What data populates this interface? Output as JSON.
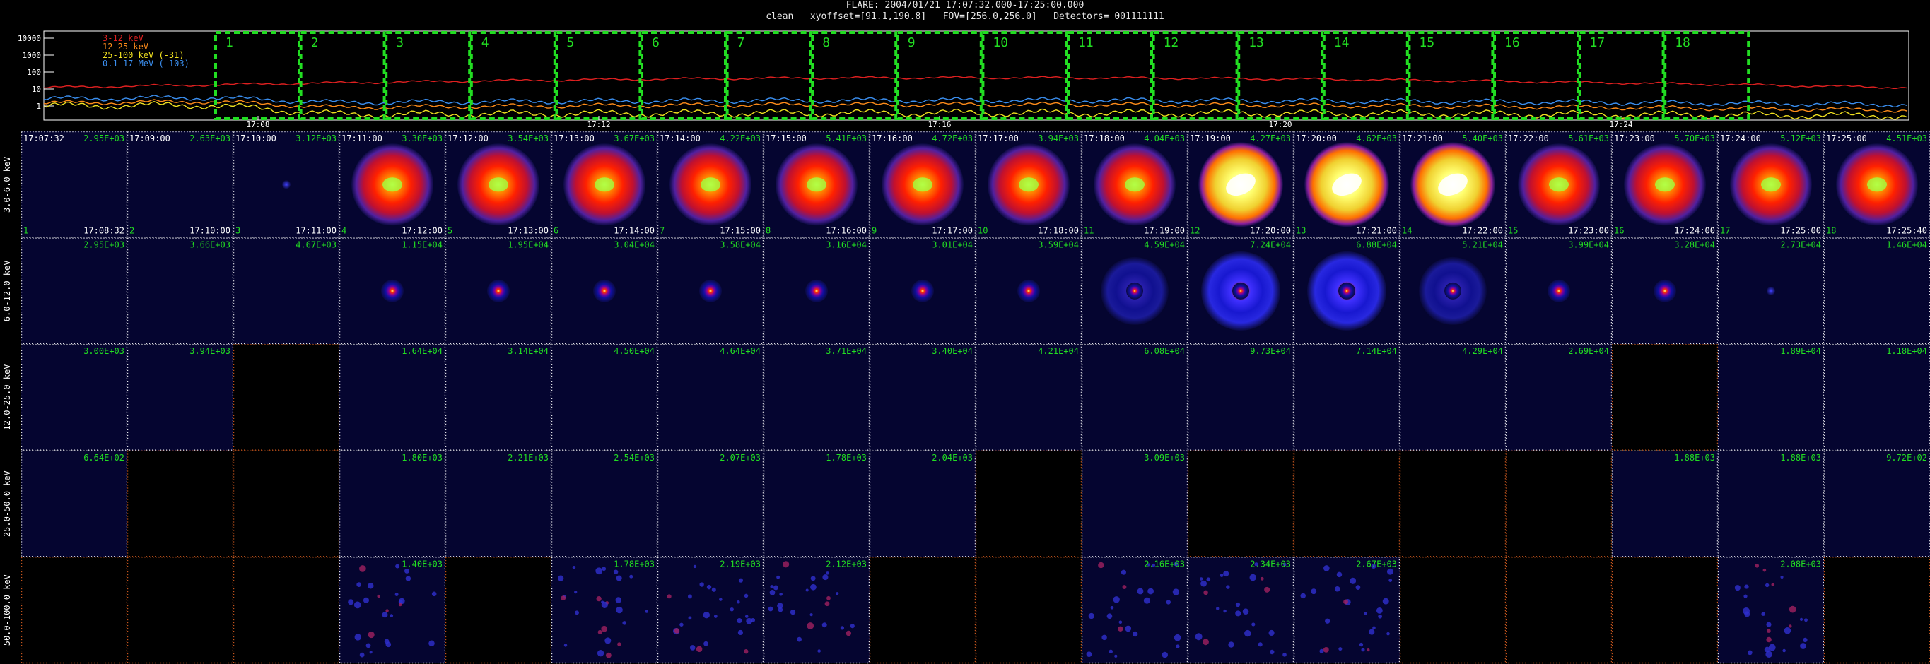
{
  "header": {
    "line1": "FLARE: 2004/01/21 17:07:32.000-17:25:00.000",
    "line2": "clean   xyoffset=[91.1,190.8]   FOV=[256.0,256.0]   Detectors= 001111111"
  },
  "lightcurve": {
    "yticks": [
      "10000",
      "1000",
      "100",
      "10",
      "1"
    ],
    "xticks": [
      "17:08",
      "17:12",
      "17:16",
      "17:20",
      "17:24"
    ],
    "legend": [
      {
        "label": "3-12 keV",
        "color": "#e02020"
      },
      {
        "label": "12-25 keV",
        "color": "#ff8c1a"
      },
      {
        "label": "25-100 keV (-31)",
        "color": "#f0e020"
      },
      {
        "label": "0.1-17 MeV (-103)",
        "color": "#3b8ff0"
      }
    ],
    "intervals": [
      "1",
      "2",
      "3",
      "4",
      "5",
      "6",
      "7",
      "8",
      "9",
      "10",
      "11",
      "12",
      "13",
      "14",
      "15",
      "16",
      "17",
      "18"
    ]
  },
  "grid": {
    "col_start_times": [
      "17:07:32",
      "17:09:00",
      "17:10:00",
      "17:11:00",
      "17:12:00",
      "17:13:00",
      "17:14:00",
      "17:15:00",
      "17:16:00",
      "17:17:00",
      "17:18:00",
      "17:19:00",
      "17:20:00",
      "17:21:00",
      "17:22:00",
      "17:23:00",
      "17:24:00",
      "17:25:00"
    ],
    "col_end_times": [
      "17:08:32",
      "17:10:00",
      "17:11:00",
      "17:12:00",
      "17:13:00",
      "17:14:00",
      "17:15:00",
      "17:16:00",
      "17:17:00",
      "17:18:00",
      "17:19:00",
      "17:20:00",
      "17:21:00",
      "17:22:00",
      "17:23:00",
      "17:24:00",
      "17:25:00",
      "17:25:40"
    ],
    "col_index": [
      "1",
      "2",
      "3",
      "4",
      "5",
      "6",
      "7",
      "8",
      "9",
      "10",
      "11",
      "12",
      "13",
      "14",
      "15",
      "16",
      "17",
      "18"
    ],
    "rows": [
      {
        "band": "3.0-6.0 keV",
        "max": [
          "2.95E+03",
          "2.63E+03",
          "3.12E+03",
          "3.30E+03",
          "3.54E+03",
          "3.67E+03",
          "4.22E+03",
          "5.41E+03",
          "4.72E+03",
          "3.94E+03",
          "4.04E+03",
          "4.27E+03",
          "4.62E+03",
          "5.40E+03",
          "5.61E+03",
          "5.70E+03",
          "5.12E+03",
          "4.51E+03"
        ],
        "kind": [
          "blank",
          "blank",
          "speck",
          "ring",
          "ring",
          "ring",
          "ring",
          "ring",
          "ring",
          "ring",
          "ring",
          "yellow",
          "yellow",
          "yellow",
          "ring",
          "ring",
          "ring",
          "ring"
        ]
      },
      {
        "band": "6.0-12.0 keV",
        "max": [
          "2.95E+03",
          "3.66E+03",
          "4.67E+03",
          "1.15E+04",
          "1.95E+04",
          "3.04E+04",
          "3.58E+04",
          "3.16E+04",
          "3.01E+04",
          "3.59E+04",
          "4.59E+04",
          "7.24E+04",
          "6.88E+04",
          "5.21E+04",
          "3.99E+04",
          "3.28E+04",
          "2.73E+04",
          "1.46E+04"
        ],
        "kind": [
          "blank",
          "blank",
          "blank",
          "spot",
          "spot",
          "spot",
          "spot",
          "spot",
          "spot",
          "spot",
          "spotring",
          "bluering",
          "bluering",
          "spotring",
          "spot",
          "spot",
          "speck",
          "blank"
        ]
      },
      {
        "band": "12.0-25.0 keV",
        "max": [
          "3.00E+03",
          "3.94E+03",
          "",
          "1.64E+04",
          "3.14E+04",
          "4.50E+04",
          "4.64E+04",
          "3.71E+04",
          "3.40E+04",
          "4.21E+04",
          "6.08E+04",
          "9.73E+04",
          "7.14E+04",
          "4.29E+04",
          "2.69E+04",
          "",
          "1.89E+04",
          "1.18E+04"
        ],
        "kind": [
          "blank",
          "blank",
          "empty",
          "blank",
          "blank",
          "blank",
          "blank",
          "blank",
          "blank",
          "blank",
          "blank",
          "blank",
          "blank",
          "blank",
          "blank",
          "empty",
          "blank",
          "blank"
        ]
      },
      {
        "band": "25.0-50.0 keV",
        "max": [
          "6.64E+02",
          "",
          "",
          "1.80E+03",
          "2.21E+03",
          "2.54E+03",
          "2.07E+03",
          "1.78E+03",
          "2.04E+03",
          "",
          "3.09E+03",
          "",
          "",
          "",
          "",
          "1.88E+03",
          "1.88E+03",
          "9.72E+02"
        ],
        "kind": [
          "blank",
          "empty",
          "empty",
          "blank",
          "blank",
          "blank",
          "blank",
          "blank",
          "blank",
          "empty",
          "blank",
          "empty",
          "empty",
          "empty",
          "empty",
          "blank",
          "blank",
          "blank"
        ]
      },
      {
        "band": "50.0-100.0 keV",
        "max": [
          "",
          "",
          "",
          "1.40E+03",
          "",
          "1.78E+03",
          "2.19E+03",
          "2.12E+03",
          "",
          "",
          "2.16E+03",
          "2.34E+03",
          "2.67E+03",
          "",
          "",
          "",
          "2.08E+03",
          ""
        ],
        "kind": [
          "empty",
          "empty",
          "empty",
          "noise",
          "empty",
          "noise",
          "noise",
          "noise",
          "empty",
          "empty",
          "noise",
          "noise",
          "noise",
          "empty",
          "empty",
          "empty",
          "noise",
          "empty"
        ]
      }
    ]
  }
}
